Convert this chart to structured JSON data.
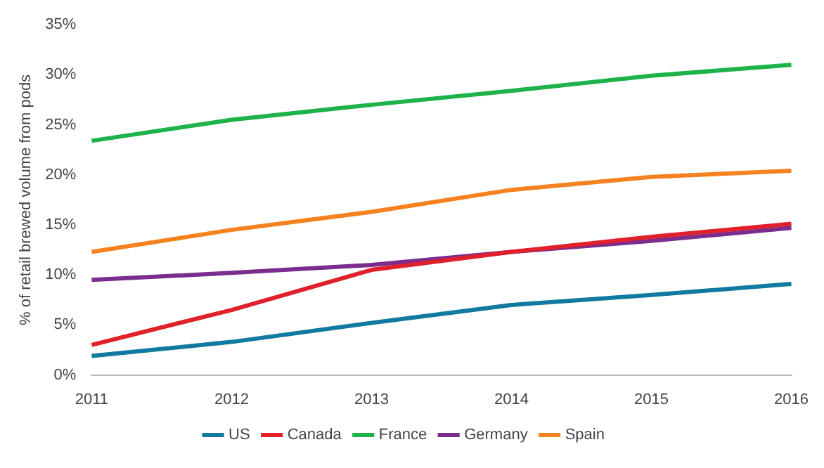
{
  "chart_data": {
    "type": "line",
    "categories": [
      "2011",
      "2012",
      "2013",
      "2014",
      "2015",
      "2016"
    ],
    "ylabel": "% of retail brewed volume from pods",
    "ylim": [
      0,
      35
    ],
    "yticks": [
      {
        "value": 0,
        "label": "0%"
      },
      {
        "value": 5,
        "label": "5%"
      },
      {
        "value": 10,
        "label": "10%"
      },
      {
        "value": 15,
        "label": "15%"
      },
      {
        "value": 20,
        "label": "20%"
      },
      {
        "value": 25,
        "label": "25%"
      },
      {
        "value": 30,
        "label": "30%"
      },
      {
        "value": 35,
        "label": "35%"
      }
    ],
    "legend": "bottom",
    "marker": "none",
    "line_style": "solid",
    "series": [
      {
        "name": "US",
        "color": "#117aa0",
        "values": [
          1.9,
          3.3,
          5.2,
          7.0,
          8.0,
          9.1
        ]
      },
      {
        "name": "Canada",
        "color": "#e0202a",
        "values": [
          3.0,
          6.5,
          10.5,
          12.3,
          13.8,
          15.1
        ]
      },
      {
        "name": "France",
        "color": "#1db34a",
        "values": [
          23.4,
          25.5,
          27.0,
          28.4,
          29.9,
          31.0
        ]
      },
      {
        "name": "Germany",
        "color": "#7b2d8e",
        "values": [
          9.5,
          10.2,
          11.0,
          12.3,
          13.4,
          14.7
        ]
      },
      {
        "name": "Spain",
        "color": "#f5821f",
        "values": [
          12.3,
          14.5,
          16.3,
          18.5,
          19.8,
          20.4
        ]
      }
    ]
  }
}
